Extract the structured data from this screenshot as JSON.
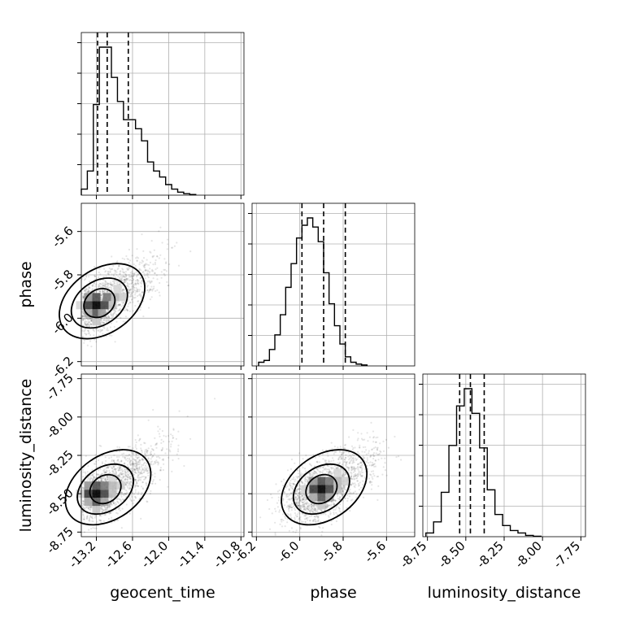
{
  "chart_data": {
    "type": "corner",
    "parameters": [
      {
        "name": "geocent_time",
        "range": [
          -13.45,
          -10.75
        ],
        "ticks": [
          "-13.2",
          "-12.6",
          "-12.0",
          "-11.4",
          "-10.8"
        ],
        "tick_values": [
          -13.2,
          -12.6,
          -12.0,
          -11.4,
          -10.8
        ]
      },
      {
        "name": "phase",
        "range": [
          -6.22,
          -5.47
        ],
        "ticks": [
          "-6.2",
          "-6.0",
          "-5.8",
          "-5.6"
        ],
        "tick_values": [
          -6.2,
          -6.0,
          -5.8,
          -5.6
        ]
      },
      {
        "name": "luminosity_distance",
        "range": [
          -8.78,
          -7.72
        ],
        "ticks": [
          "-8.75",
          "-8.50",
          "-8.25",
          "-8.00",
          "-7.75"
        ],
        "tick_values": [
          -8.75,
          -8.5,
          -8.25,
          -8.0,
          -7.75
        ]
      }
    ],
    "histograms": [
      {
        "parameter": "geocent_time",
        "bin_edges_start": -13.45,
        "bin_width": 0.1,
        "counts": [
          0.2,
          0.8,
          3.0,
          4.9,
          4.9,
          3.9,
          3.1,
          2.5,
          2.5,
          2.2,
          1.8,
          1.1,
          0.8,
          0.6,
          0.35,
          0.2,
          0.1,
          0.05,
          0.02
        ],
        "quantiles": [
          -13.18,
          -13.02,
          -12.67
        ]
      },
      {
        "parameter": "phase",
        "bin_edges_start": -6.19,
        "bin_width": 0.025,
        "counts": [
          0.2,
          0.3,
          0.9,
          1.7,
          2.8,
          4.3,
          5.6,
          7.0,
          7.7,
          8.1,
          7.6,
          6.8,
          5.1,
          3.4,
          2.2,
          1.2,
          0.5,
          0.2,
          0.1,
          0.05
        ],
        "quantiles": [
          -5.99,
          -5.89,
          -5.79
        ]
      },
      {
        "parameter": "luminosity_distance",
        "bin_edges_start": -8.76,
        "bin_width": 0.05,
        "counts": [
          0.15,
          0.6,
          1.8,
          3.7,
          5.3,
          6.0,
          5.0,
          3.6,
          1.9,
          0.9,
          0.45,
          0.25,
          0.15,
          0.05,
          0.02
        ],
        "quantiles": [
          -8.54,
          -8.47,
          -8.38
        ]
      }
    ],
    "pairs": [
      {
        "x": "geocent_time",
        "y": "phase",
        "center": [
          -13.15,
          -5.93
        ],
        "peak": [
          -13.2,
          -5.94
        ]
      },
      {
        "x": "geocent_time",
        "y": "luminosity_distance",
        "center": [
          -13.05,
          -8.47
        ],
        "peak": [
          -13.2,
          -8.5
        ]
      },
      {
        "x": "phase",
        "y": "luminosity_distance",
        "center": [
          -5.9,
          -8.47
        ],
        "peak": [
          -5.9,
          -8.47
        ]
      }
    ]
  }
}
